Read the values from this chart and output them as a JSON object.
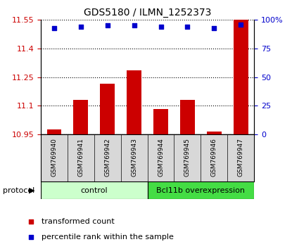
{
  "title": "GDS5180 / ILMN_1252373",
  "samples": [
    "GSM769940",
    "GSM769941",
    "GSM769942",
    "GSM769943",
    "GSM769944",
    "GSM769945",
    "GSM769946",
    "GSM769947"
  ],
  "bar_values": [
    10.975,
    11.13,
    11.215,
    11.285,
    11.085,
    11.13,
    10.965,
    11.55
  ],
  "scatter_values": [
    93,
    94,
    95,
    95,
    94,
    94,
    93,
    96
  ],
  "ylim_left": [
    10.95,
    11.55
  ],
  "ylim_right": [
    0,
    100
  ],
  "yticks_left": [
    10.95,
    11.1,
    11.25,
    11.4,
    11.55
  ],
  "yticks_right": [
    0,
    25,
    50,
    75,
    100
  ],
  "bar_color": "#cc0000",
  "scatter_color": "#0000cc",
  "bar_bottom": 10.95,
  "groups": [
    {
      "label": "control",
      "start": 0,
      "end": 3,
      "color": "#ccffcc"
    },
    {
      "label": "Bcl11b overexpression",
      "start": 4,
      "end": 7,
      "color": "#44dd44"
    }
  ],
  "protocol_label": "protocol",
  "legend_items": [
    {
      "color": "#cc0000",
      "label": "transformed count"
    },
    {
      "color": "#0000cc",
      "label": "percentile rank within the sample"
    }
  ],
  "tick_color_left": "#cc0000",
  "tick_color_right": "#0000cc",
  "sample_bg": "#d8d8d8",
  "title_fontsize": 10,
  "axis_fontsize": 8,
  "legend_fontsize": 8
}
